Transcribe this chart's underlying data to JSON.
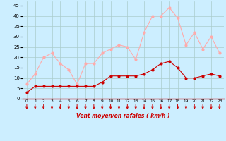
{
  "hours": [
    0,
    1,
    2,
    3,
    4,
    5,
    6,
    7,
    8,
    9,
    10,
    11,
    12,
    13,
    14,
    15,
    16,
    17,
    18,
    19,
    20,
    21,
    22,
    23
  ],
  "wind_avg": [
    3,
    6,
    6,
    6,
    6,
    6,
    6,
    6,
    6,
    8,
    11,
    11,
    11,
    11,
    12,
    14,
    17,
    18,
    15,
    10,
    10,
    11,
    12,
    11
  ],
  "wind_gust": [
    7,
    12,
    20,
    22,
    17,
    14,
    7,
    17,
    17,
    22,
    24,
    26,
    25,
    19,
    32,
    40,
    40,
    44,
    39,
    26,
    32,
    24,
    30,
    22
  ],
  "avg_color": "#cc0000",
  "gust_color": "#ffaaaa",
  "bg_color": "#cceeff",
  "grid_color": "#aacccc",
  "arrow_color": "#cc0000",
  "xlabel": "Vent moyen/en rafales ( km/h )",
  "xlabel_color": "#cc0000",
  "ylabel_ticks": [
    0,
    5,
    10,
    15,
    20,
    25,
    30,
    35,
    40,
    45
  ],
  "xlim": [
    -0.5,
    23.5
  ],
  "ylim": [
    0,
    47
  ]
}
